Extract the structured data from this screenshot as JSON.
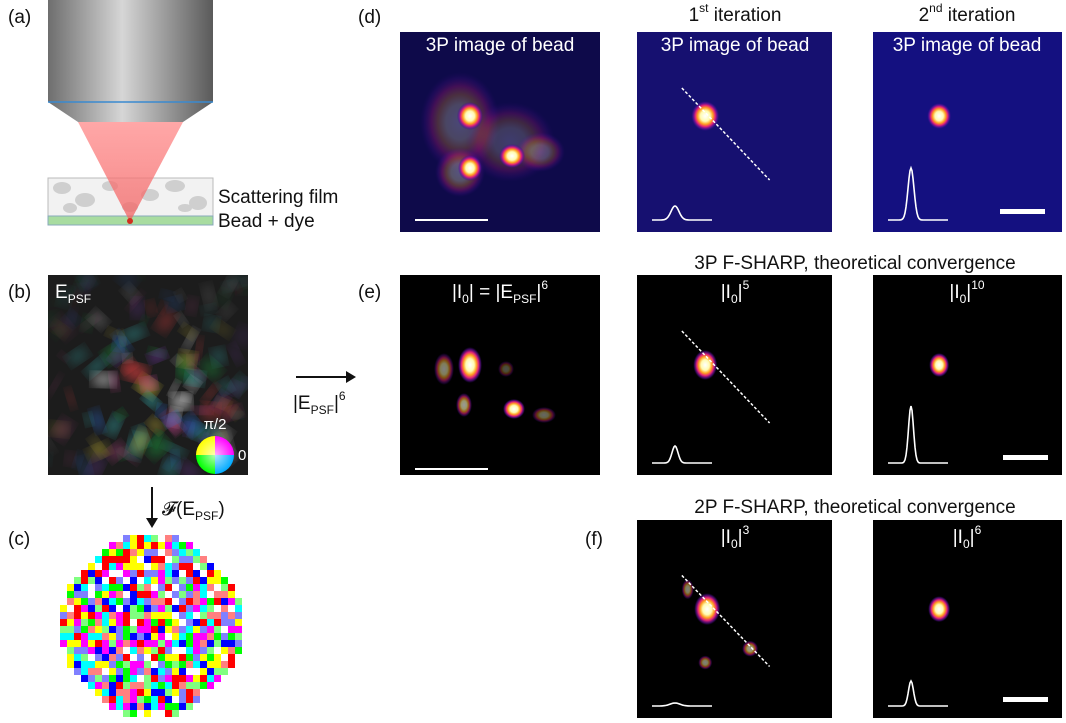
{
  "panel_labels": {
    "a": "(a)",
    "b": "(b)",
    "c": "(c)",
    "d": "(d)",
    "e": "(e)",
    "f": "(f)"
  },
  "panel_a": {
    "film_label": "Scattering film",
    "bead_label": "Bead + dye"
  },
  "panel_b": {
    "field_label": [
      {
        "normal": "E"
      },
      {
        "sub": "PSF"
      }
    ],
    "phase_top": "π/2",
    "phase_right": "0",
    "transform_label": [
      {
        "normal": "𝓕(E"
      },
      {
        "sub": "PSF"
      },
      {
        "normal": ")"
      }
    ]
  },
  "arrow_label": [
    {
      "normal": "|E"
    },
    {
      "sub": "PSF"
    },
    {
      "normal": "|"
    },
    {
      "sup": "6"
    }
  ],
  "panel_d": {
    "image_label": "3P image of bead",
    "columns": [
      [
        {
          "normal": "1"
        },
        {
          "sup": "st"
        },
        {
          "normal": " iteration"
        }
      ],
      [
        {
          "normal": "2"
        },
        {
          "sup": "nd"
        },
        {
          "normal": " iteration"
        }
      ]
    ]
  },
  "panel_e": {
    "heading": "3P F-SHARP, theoretical convergence",
    "images": [
      [
        {
          "normal": "|I"
        },
        {
          "sub": "0"
        },
        {
          "normal": "| = |E"
        },
        {
          "sub": "PSF"
        },
        {
          "normal": "|"
        },
        {
          "sup": "6"
        }
      ],
      [
        {
          "normal": "|I"
        },
        {
          "sub": "0"
        },
        {
          "normal": "|"
        },
        {
          "sup": "5"
        }
      ],
      [
        {
          "normal": "|I"
        },
        {
          "sub": "0"
        },
        {
          "normal": "|"
        },
        {
          "sup": "10"
        }
      ]
    ]
  },
  "panel_f": {
    "heading": "2P F-SHARP, theoretical convergence",
    "images": [
      [
        {
          "normal": "|I"
        },
        {
          "sub": "0"
        },
        {
          "normal": "|"
        },
        {
          "sup": "3"
        }
      ],
      [
        {
          "normal": "|I"
        },
        {
          "sub": "0"
        },
        {
          "normal": "|"
        },
        {
          "sup": "6"
        }
      ]
    ]
  }
}
